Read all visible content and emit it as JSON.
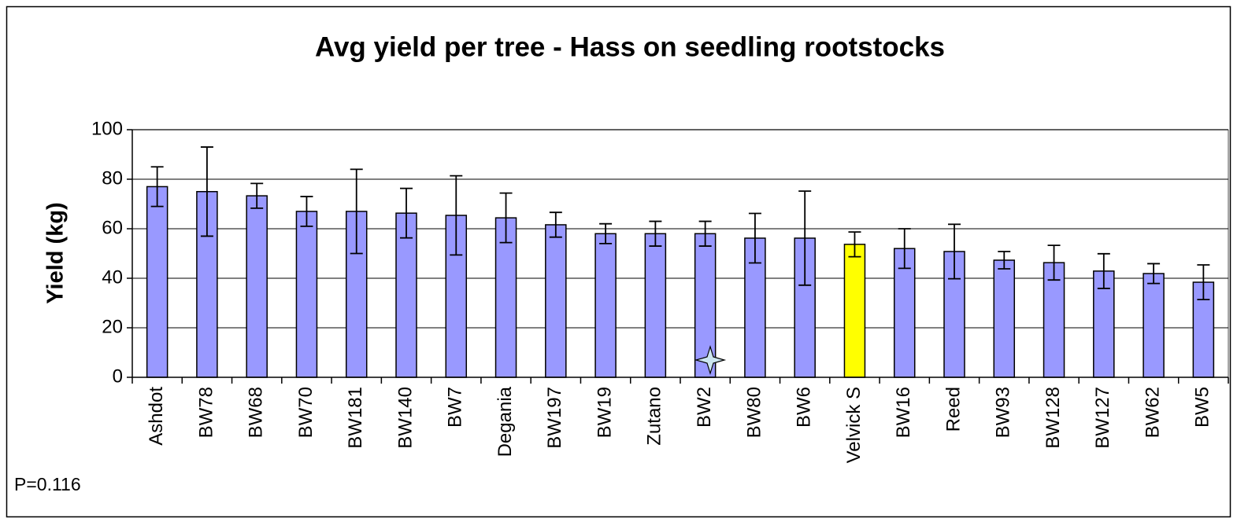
{
  "chart_data": {
    "type": "bar",
    "title": "Avg yield per tree - Hass on seedling rootstocks",
    "y_label": "Yield (kg)",
    "annotation": "P=0.116",
    "categories": [
      "Ashdot",
      "BW78",
      "BW68",
      "BW70",
      "BW181",
      "BW140",
      "BW7",
      "Degania",
      "BW197",
      "BW19",
      "Zutano",
      "BW2",
      "BW80",
      "BW6",
      "Velvick S",
      "BW16",
      "Reed",
      "BW93",
      "BW128",
      "BW127",
      "BW62",
      "BW5"
    ],
    "values": [
      77,
      75,
      73.3,
      67,
      67,
      66.3,
      65.4,
      64.4,
      61.6,
      58,
      58,
      58,
      56.2,
      56.2,
      53.7,
      52,
      50.8,
      47.3,
      46.3,
      42.9,
      41.9,
      38.4
    ],
    "errors": [
      8,
      18,
      5,
      6,
      17,
      10,
      16,
      10,
      5,
      4,
      5,
      5,
      10,
      19,
      5,
      8,
      11,
      3.5,
      7,
      7,
      4,
      7
    ],
    "colors": [
      "#9999ff",
      "#9999ff",
      "#9999ff",
      "#9999ff",
      "#9999ff",
      "#9999ff",
      "#9999ff",
      "#9999ff",
      "#9999ff",
      "#9999ff",
      "#9999ff",
      "#9999ff",
      "#9999ff",
      "#9999ff",
      "#ffff00",
      "#9999ff",
      "#9999ff",
      "#9999ff",
      "#9999ff",
      "#9999ff",
      "#9999ff",
      "#9999ff"
    ],
    "ylim": [
      0,
      100
    ],
    "yticks": [
      0,
      20,
      40,
      60,
      80,
      100
    ],
    "grid": true
  }
}
